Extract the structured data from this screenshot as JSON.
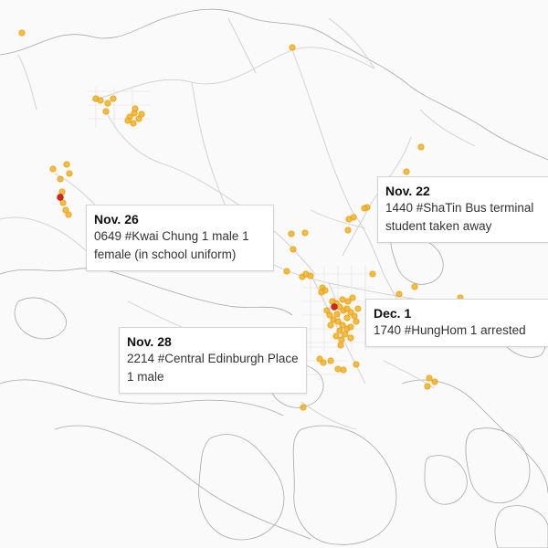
{
  "map": {
    "land_color": "#fafafa",
    "coast_color": "#a8a8a8",
    "road_color": "#cfcfcf",
    "incident_color": "#f2b21d",
    "incident_stroke": "#e89a10",
    "highlight_color": "#d8231c"
  },
  "callouts": [
    {
      "id": "c1",
      "date": "Nov. 26",
      "text": "0649 #Kwai Chung 1 male 1 female (in school uniform)"
    },
    {
      "id": "c2",
      "date": "Nov. 22",
      "text": "1440 #ShaTin Bus terminal student taken away"
    },
    {
      "id": "c3",
      "date": "Nov. 28",
      "text": "2214 #Central Edinburgh Place 1 male"
    },
    {
      "id": "c4",
      "date": "Dec. 1",
      "text": "1740 #HungHom 1 arrested"
    }
  ]
}
